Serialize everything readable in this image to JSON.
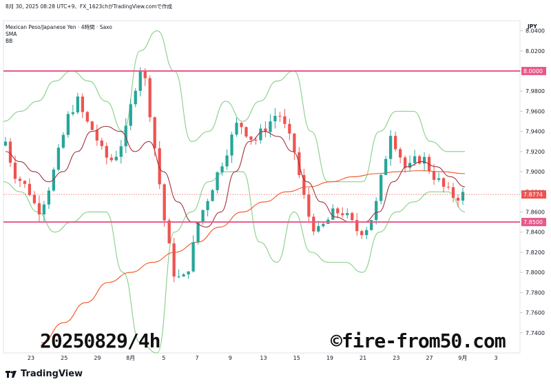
{
  "header": {
    "line1": "8月 30, 2025 08:28 UTC+9、FX_1623chがTradingView.comで作成",
    "symbol": "Mexican Peso/Japanese Yen · 4時間 · Saxo",
    "ind1": "SMA",
    "ind2": "BB",
    "currency": "JPY"
  },
  "annotations": {
    "date_label": "20250829/4h",
    "site": "©fire-from50.com"
  },
  "footer": {
    "brand": "TradingView"
  },
  "colors": {
    "up": "#26a69a",
    "down": "#ef5350",
    "bb": "#8fd18f",
    "sma_long": "#f4511e",
    "sma_short": "#a0303a",
    "hline": "#e8588a"
  },
  "chart_data": {
    "type": "candlestick",
    "ylim": [
      7.72,
      8.05
    ],
    "y_ticks": [
      "8.0400",
      "8.0200",
      "8.0000",
      "7.9800",
      "7.9600",
      "7.9400",
      "7.9200",
      "7.9000",
      "7.8800",
      "7.8600",
      "7.8400",
      "7.8200",
      "7.8000",
      "7.7800",
      "7.7600",
      "7.7400"
    ],
    "x_ticks": [
      "23",
      "25",
      "29",
      "8月",
      "5",
      "7",
      "9",
      "13",
      "15",
      "19",
      "21",
      "23",
      "27",
      "9月",
      "3"
    ],
    "horizontal_lines": [
      {
        "value": 8.0,
        "label": "8.0000"
      },
      {
        "value": 7.85,
        "label": "7.8500"
      }
    ],
    "last_price": {
      "value": 7.8774,
      "label": "7.8774"
    },
    "close_path": [
      7.93,
      7.9,
      7.89,
      7.88,
      7.86,
      7.875,
      7.9,
      7.93,
      7.96,
      7.97,
      7.95,
      7.94,
      7.92,
      7.91,
      7.92,
      7.94,
      7.98,
      8.01,
      7.96,
      7.9,
      7.84,
      7.8,
      7.79,
      7.81,
      7.85,
      7.87,
      7.89,
      7.91,
      7.93,
      7.95,
      7.94,
      7.93,
      7.94,
      7.95,
      7.96,
      7.94,
      7.92,
      7.88,
      7.85,
      7.84,
      7.85,
      7.86,
      7.86,
      7.85,
      7.84,
      7.845,
      7.86,
      7.9,
      7.94,
      7.92,
      7.9,
      7.91,
      7.915,
      7.9,
      7.89,
      7.88,
      7.875,
      7.877
    ],
    "bb_upper": [
      7.95,
      7.96,
      7.97,
      7.99,
      8.0,
      7.99,
      7.97,
      7.94,
      8.02,
      8.04,
      8.0,
      7.93,
      7.94,
      7.97,
      7.95,
      7.97,
      7.99,
      8.0,
      7.94,
      7.89,
      7.89,
      7.89,
      7.94,
      7.96,
      7.96,
      7.93,
      7.92,
      7.92
    ],
    "bb_lower": [
      7.89,
      7.88,
      7.86,
      7.84,
      7.85,
      7.86,
      7.86,
      7.8,
      7.73,
      7.72,
      7.84,
      7.86,
      7.89,
      7.9,
      7.9,
      7.83,
      7.81,
      7.86,
      7.82,
      7.81,
      7.81,
      7.8,
      7.84,
      7.86,
      7.87,
      7.88,
      7.88,
      7.86
    ],
    "sma_short": [
      7.92,
      7.91,
      7.9,
      7.89,
      7.9,
      7.92,
      7.94,
      7.945,
      7.94,
      7.92,
      7.93,
      7.9,
      7.87,
      7.85,
      7.845,
      7.86,
      7.9,
      7.93,
      7.94,
      7.935,
      7.92,
      7.89,
      7.87,
      7.855,
      7.85,
      7.85,
      7.86,
      7.89,
      7.905,
      7.91,
      7.905,
      7.895,
      7.885
    ],
    "sma_long": [
      7.73,
      7.75,
      7.77,
      7.79,
      7.8,
      7.81,
      7.82,
      7.83,
      7.845,
      7.86,
      7.87,
      7.88,
      7.885,
      7.89,
      7.895,
      7.898,
      7.9,
      7.901,
      7.9,
      7.898
    ]
  }
}
